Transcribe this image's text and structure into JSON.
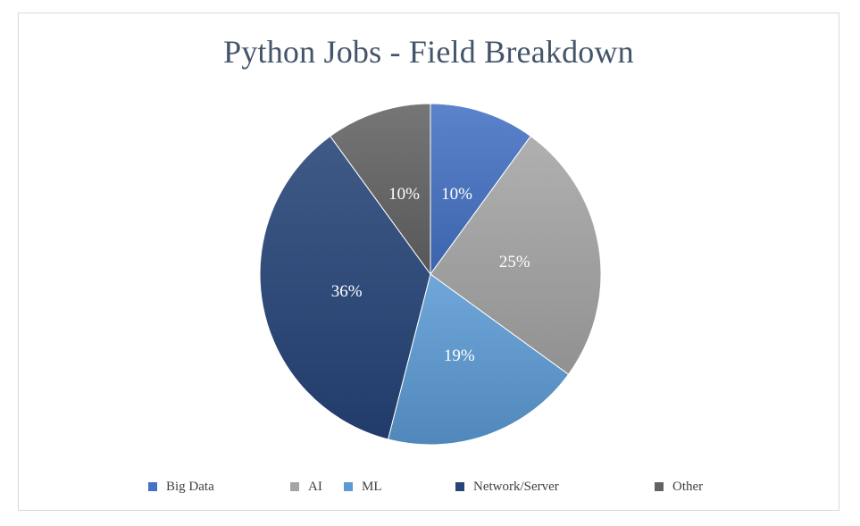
{
  "chart_data": {
    "type": "pie",
    "title": "Python Jobs - Field Breakdown",
    "slices": [
      {
        "label": "Big Data",
        "value": 10,
        "display": "10%",
        "color": "#4472c4"
      },
      {
        "label": "AI",
        "value": 25,
        "display": "25%",
        "color": "#a5a5a5"
      },
      {
        "label": "ML",
        "value": 19,
        "display": "19%",
        "color": "#5b9bd5"
      },
      {
        "label": "Network/Server",
        "value": 36,
        "display": "36%",
        "color": "#264478"
      },
      {
        "label": "Other",
        "value": 10,
        "display": "10%",
        "color": "#636363"
      }
    ],
    "legend_position": "bottom"
  }
}
